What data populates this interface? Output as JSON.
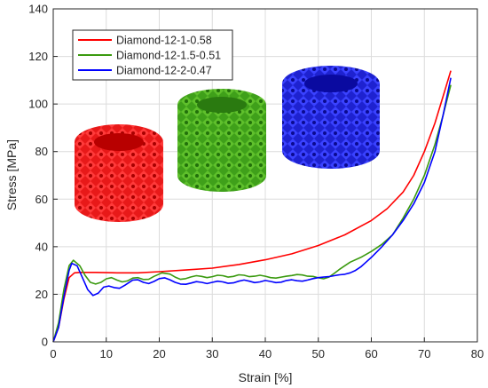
{
  "chart_data": {
    "type": "line",
    "xlabel": "Strain [%]",
    "ylabel": "Stress [MPa]",
    "xlim": [
      0,
      80
    ],
    "ylim": [
      0,
      140
    ],
    "xticks": [
      0,
      10,
      20,
      30,
      40,
      50,
      60,
      70,
      80
    ],
    "yticks": [
      0,
      20,
      40,
      60,
      80,
      100,
      120,
      140
    ],
    "grid": true,
    "legend_position": "top-left",
    "series": [
      {
        "name": "Diamond-12-1-0.58",
        "color": "#ff0000",
        "points": [
          [
            0,
            0
          ],
          [
            1,
            6
          ],
          [
            2,
            18
          ],
          [
            3,
            27
          ],
          [
            4,
            29
          ],
          [
            5,
            29.2
          ],
          [
            8,
            29.2
          ],
          [
            12,
            29
          ],
          [
            16,
            29
          ],
          [
            20,
            29.5
          ],
          [
            25,
            30.2
          ],
          [
            30,
            31
          ],
          [
            35,
            32.5
          ],
          [
            40,
            34.5
          ],
          [
            45,
            37
          ],
          [
            50,
            40.5
          ],
          [
            55,
            45
          ],
          [
            60,
            51
          ],
          [
            63,
            56
          ],
          [
            66,
            63
          ],
          [
            68,
            70
          ],
          [
            70,
            80
          ],
          [
            72,
            92
          ],
          [
            73.5,
            103
          ],
          [
            75,
            114
          ]
        ]
      },
      {
        "name": "Diamond-12-1.5-0.51",
        "color": "#3a9a0f",
        "points": [
          [
            0,
            0
          ],
          [
            1,
            8
          ],
          [
            2,
            22
          ],
          [
            3,
            32
          ],
          [
            3.8,
            34.3
          ],
          [
            5,
            32
          ],
          [
            6,
            28
          ],
          [
            7,
            25
          ],
          [
            8,
            24.3
          ],
          [
            9,
            25
          ],
          [
            10,
            26.5
          ],
          [
            11,
            27
          ],
          [
            12,
            26
          ],
          [
            13,
            25.2
          ],
          [
            14,
            25.6
          ],
          [
            15,
            26.8
          ],
          [
            16,
            27
          ],
          [
            17,
            26.2
          ],
          [
            18,
            26.3
          ],
          [
            19,
            27.5
          ],
          [
            20.5,
            29
          ],
          [
            22,
            28.5
          ],
          [
            23,
            27.2
          ],
          [
            24,
            26.3
          ],
          [
            25,
            26.6
          ],
          [
            26,
            27.3
          ],
          [
            27,
            27.8
          ],
          [
            28,
            27.5
          ],
          [
            29,
            27
          ],
          [
            30,
            27.4
          ],
          [
            31,
            28
          ],
          [
            32,
            27.8
          ],
          [
            33,
            27.2
          ],
          [
            34,
            27.5
          ],
          [
            35,
            28.2
          ],
          [
            36,
            28
          ],
          [
            37,
            27.4
          ],
          [
            38,
            27.6
          ],
          [
            39,
            28
          ],
          [
            40,
            27.6
          ],
          [
            41,
            27
          ],
          [
            42,
            26.8
          ],
          [
            43,
            27.2
          ],
          [
            44,
            27.6
          ],
          [
            45,
            27.9
          ],
          [
            46,
            28.3
          ],
          [
            47,
            28.1
          ],
          [
            48,
            27.6
          ],
          [
            49,
            27.5
          ],
          [
            50,
            26.9
          ],
          [
            51,
            26.5
          ],
          [
            52,
            27.2
          ],
          [
            53,
            28.8
          ],
          [
            54,
            30.5
          ],
          [
            55,
            32
          ],
          [
            56,
            33.5
          ],
          [
            58,
            35.5
          ],
          [
            60,
            38
          ],
          [
            62,
            41
          ],
          [
            64,
            45
          ],
          [
            66,
            52
          ],
          [
            68,
            60
          ],
          [
            70,
            70
          ],
          [
            72,
            83
          ],
          [
            73.5,
            95
          ],
          [
            75,
            108
          ]
        ]
      },
      {
        "name": "Diamond-12-2-0.47",
        "color": "#0000ff",
        "points": [
          [
            0,
            0
          ],
          [
            1,
            6
          ],
          [
            2,
            19
          ],
          [
            3,
            30
          ],
          [
            3.5,
            33
          ],
          [
            4.5,
            32
          ],
          [
            5.5,
            27
          ],
          [
            6.5,
            22
          ],
          [
            7.5,
            19.5
          ],
          [
            8.5,
            20.5
          ],
          [
            9.5,
            23
          ],
          [
            10.5,
            23.5
          ],
          [
            11.5,
            22.8
          ],
          [
            12.5,
            22.5
          ],
          [
            13.5,
            23.8
          ],
          [
            15,
            26
          ],
          [
            16,
            26.1
          ],
          [
            17,
            25
          ],
          [
            18,
            24.5
          ],
          [
            19,
            25.4
          ],
          [
            20,
            26.6
          ],
          [
            21,
            26.9
          ],
          [
            22,
            26.1
          ],
          [
            23,
            25
          ],
          [
            24,
            24.3
          ],
          [
            25,
            24.2
          ],
          [
            26,
            24.7
          ],
          [
            27,
            25.3
          ],
          [
            28,
            25
          ],
          [
            29,
            24.5
          ],
          [
            30,
            25
          ],
          [
            31,
            25.5
          ],
          [
            32,
            25.2
          ],
          [
            33,
            24.6
          ],
          [
            34,
            24.8
          ],
          [
            35,
            25.5
          ],
          [
            36,
            26
          ],
          [
            37,
            25.5
          ],
          [
            38,
            24.9
          ],
          [
            39,
            25.2
          ],
          [
            40,
            25.8
          ],
          [
            41,
            25.4
          ],
          [
            42,
            24.9
          ],
          [
            43,
            25.1
          ],
          [
            44,
            25.8
          ],
          [
            45,
            26.1
          ],
          [
            46,
            25.7
          ],
          [
            47,
            25.5
          ],
          [
            48,
            26
          ],
          [
            49,
            26.6
          ],
          [
            50,
            27
          ],
          [
            51,
            27.2
          ],
          [
            52,
            27.4
          ],
          [
            53,
            27.8
          ],
          [
            54,
            28.2
          ],
          [
            55,
            28.4
          ],
          [
            56,
            29
          ],
          [
            57,
            30
          ],
          [
            58,
            31.5
          ],
          [
            59,
            33.5
          ],
          [
            60,
            35.5
          ],
          [
            62,
            40
          ],
          [
            64,
            45
          ],
          [
            66,
            51
          ],
          [
            68,
            58
          ],
          [
            70,
            67
          ],
          [
            72,
            80
          ],
          [
            73.5,
            95
          ],
          [
            75,
            111
          ]
        ]
      }
    ]
  }
}
